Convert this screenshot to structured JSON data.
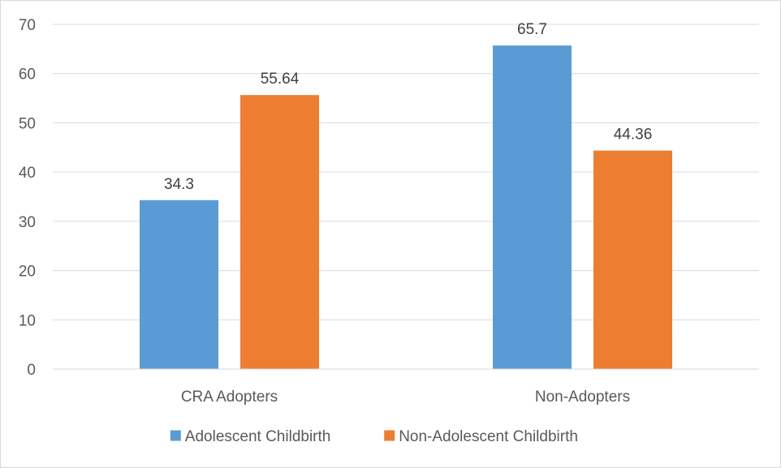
{
  "chart_data": {
    "type": "bar",
    "categories": [
      "CRA Adopters",
      "Non-Adopters"
    ],
    "series": [
      {
        "name": "Adolescent Childbirth",
        "values": [
          34.3,
          65.7
        ],
        "labels": [
          "34.3",
          "65.7"
        ],
        "color": "#5b9bd5"
      },
      {
        "name": "Non-Adolescent Childbirth",
        "values": [
          55.64,
          44.36
        ],
        "labels": [
          "55.64",
          "44.36"
        ],
        "color": "#ed7d31"
      }
    ],
    "yticks": [
      "0",
      "10",
      "20",
      "30",
      "40",
      "50",
      "60",
      "70"
    ],
    "ylim": [
      0,
      70
    ],
    "grid": true,
    "legend_position": "bottom"
  }
}
